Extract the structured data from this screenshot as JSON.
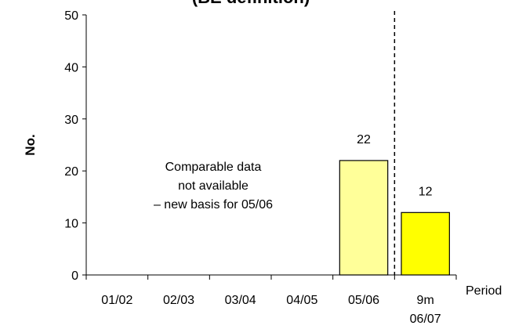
{
  "chart_data": {
    "type": "bar",
    "title": "(BE definition)",
    "ylabel": "No.",
    "xlabel": "Period",
    "ylim": [
      0,
      50
    ],
    "yticks": [
      "0",
      "10",
      "20",
      "30",
      "40",
      "50"
    ],
    "categories": [
      "01/02",
      "02/03",
      "03/04",
      "04/05",
      "05/06",
      "9m 06/07"
    ],
    "category_lines": [
      [
        "01/02"
      ],
      [
        "02/03"
      ],
      [
        "03/04"
      ],
      [
        "04/05"
      ],
      [
        "05/06"
      ],
      [
        "9m",
        "06/07"
      ]
    ],
    "values": [
      null,
      null,
      null,
      null,
      22,
      12
    ],
    "data_labels": [
      "",
      "",
      "",
      "",
      "22",
      "12"
    ],
    "bar_colors": [
      "",
      "",
      "",
      "",
      "#ffff99",
      "#ffff00"
    ],
    "annotation": [
      "Comparable data",
      "not available",
      "– new basis for 05/06"
    ],
    "divider_after_category": 5,
    "grid": false
  }
}
